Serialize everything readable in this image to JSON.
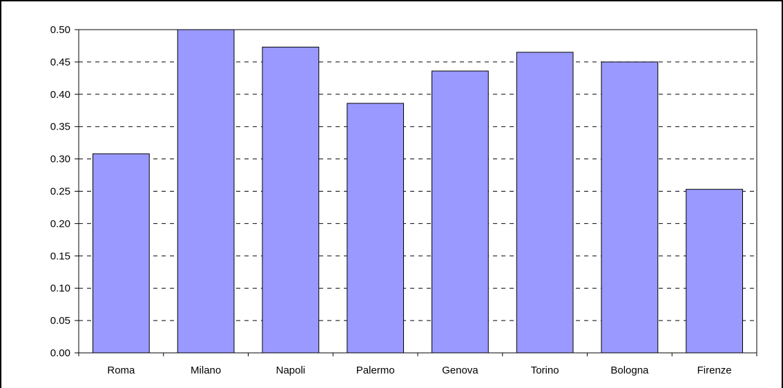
{
  "chart_data": {
    "type": "bar",
    "categories": [
      "Roma",
      "Milano",
      "Napoli",
      "Palermo",
      "Genova",
      "Torino",
      "Bologna",
      "Firenze"
    ],
    "values": [
      0.308,
      0.5,
      0.473,
      0.386,
      0.436,
      0.465,
      0.45,
      0.253
    ],
    "ylim": [
      0,
      0.5
    ],
    "yticks": [
      "0.00",
      "0.05",
      "0.10",
      "0.15",
      "0.20",
      "0.25",
      "0.30",
      "0.35",
      "0.40",
      "0.45",
      "0.50"
    ],
    "grid": true,
    "legend": "none",
    "bar_color": "#9999ff"
  }
}
